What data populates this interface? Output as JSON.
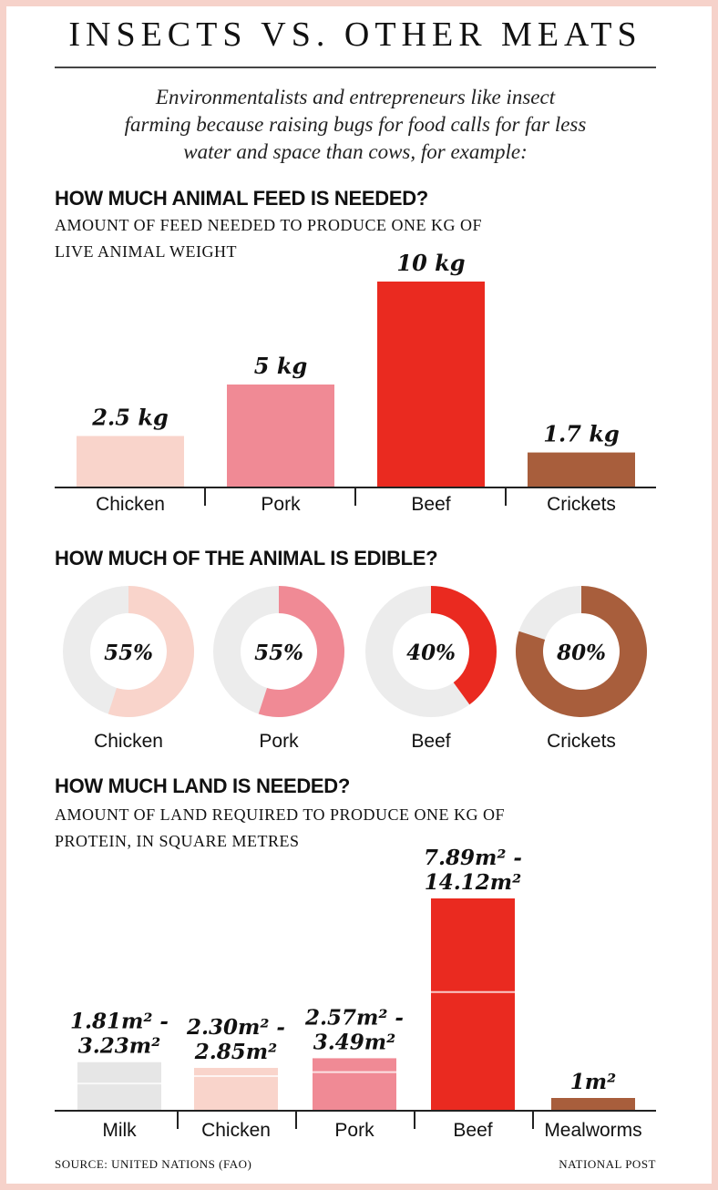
{
  "title": "INSECTS VS. OTHER MEATS",
  "intro_lines": [
    "Environmentalists and entrepreneurs like insect",
    "farming because raising bugs for food calls for far less",
    "water and space than cows, for example:"
  ],
  "colors": {
    "chicken": "#f9d4cb",
    "pork": "#f08a95",
    "beef": "#ea2a20",
    "insect": "#a85e3c",
    "milk": "#e6e6e6",
    "donut_bg": "#ececec"
  },
  "chart_data": [
    {
      "type": "bar",
      "title": "HOW MUCH ANIMAL FEED IS NEEDED?",
      "subtitle_lines": [
        "AMOUNT OF FEED NEEDED TO PRODUCE ONE KG OF",
        "LIVE ANIMAL WEIGHT"
      ],
      "categories": [
        "Chicken",
        "Pork",
        "Beef",
        "Crickets"
      ],
      "values": [
        2.5,
        5,
        10,
        1.7
      ],
      "value_labels": [
        "2.5 kg",
        "5 kg",
        "10 kg",
        "1.7 kg"
      ],
      "unit": "kg",
      "ylim": [
        0,
        10
      ]
    },
    {
      "type": "pie",
      "title": "HOW MUCH OF THE ANIMAL IS EDIBLE?",
      "categories": [
        "Chicken",
        "Pork",
        "Beef",
        "Crickets"
      ],
      "values": [
        55,
        55,
        40,
        80
      ],
      "value_labels": [
        "55%",
        "55%",
        "40%",
        "80%"
      ]
    },
    {
      "type": "bar",
      "title": "HOW MUCH LAND IS NEEDED?",
      "subtitle_lines": [
        "AMOUNT OF LAND REQUIRED TO PRODUCE ONE KG OF",
        "PROTEIN, IN SQUARE METRES"
      ],
      "categories": [
        "Milk",
        "Chicken",
        "Pork",
        "Beef",
        "Mealworms"
      ],
      "ranges": [
        [
          1.81,
          3.23
        ],
        [
          2.3,
          2.85
        ],
        [
          2.57,
          3.49
        ],
        [
          7.89,
          14.12
        ],
        [
          1,
          1
        ]
      ],
      "value_labels": [
        [
          "1.81m² -",
          "3.23m²"
        ],
        [
          "2.30m² -",
          "2.85m²"
        ],
        [
          "2.57m² -",
          "3.49m²"
        ],
        [
          "7.89m² -",
          "14.12m²"
        ],
        [
          "1m²"
        ]
      ],
      "ylim": [
        0,
        14.12
      ]
    }
  ],
  "source": "SOURCE: UNITED NATIONS (FAO)",
  "credit": "NATIONAL POST"
}
